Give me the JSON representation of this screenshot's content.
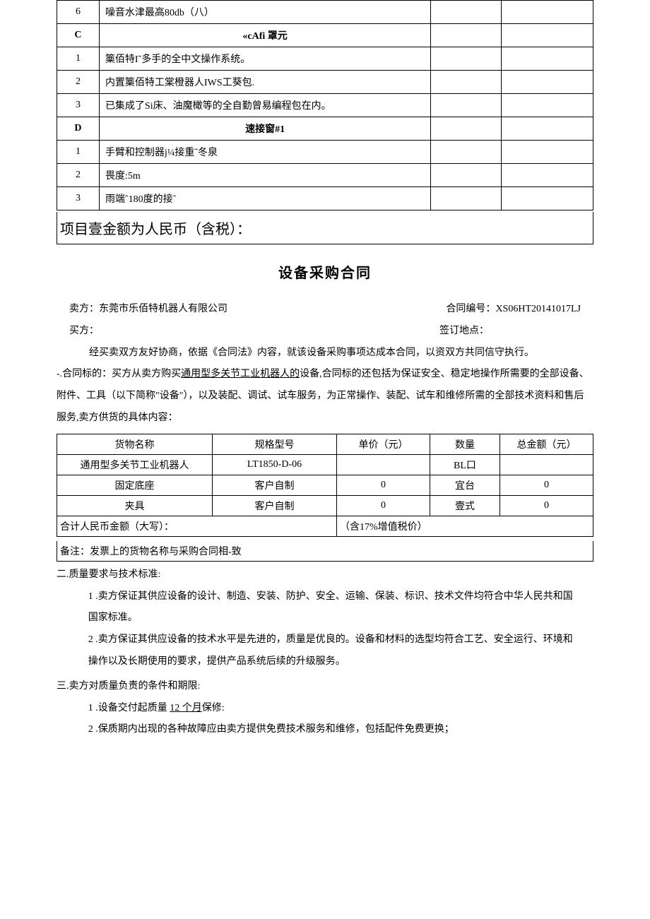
{
  "spec_table": {
    "rows": [
      {
        "idx": "6",
        "desc": "噪音水津最高80db（八）",
        "c3": "",
        "c4": "",
        "section": false
      },
      {
        "idx": "C",
        "desc": "«cAfi 罩元",
        "c3": "",
        "c4": "",
        "section": true
      },
      {
        "idx": "1",
        "desc": "篥佰特I˜多手的全中文操作系统。",
        "c3": "",
        "c4": "",
        "section": false
      },
      {
        "idx": "2",
        "desc": "内置篥佰特工棠橙器人IWS工葵包.",
        "c3": "",
        "c4": "",
        "section": false
      },
      {
        "idx": "3",
        "desc": "已集成了Si床、油魔橄等的全自勤曾易编程包在内。",
        "c3": "",
        "c4": "",
        "section": false
      },
      {
        "idx": "D",
        "desc": "速接窗#1",
        "c3": "",
        "c4": "",
        "section": true
      },
      {
        "idx": "1",
        "desc": "手臂和控制器j¼接重ˆ冬泉",
        "c3": "",
        "c4": "",
        "section": false
      },
      {
        "idx": "2",
        "desc": "畏度:5m",
        "c3": "",
        "c4": "",
        "section": false
      },
      {
        "idx": "3",
        "desc": "雨端ˆ180度的接ˆ",
        "c3": "",
        "c4": "",
        "section": false
      }
    ]
  },
  "project_amount_label": "项目壹金额为人民币（含税）：",
  "contract_title": "设备采购合同",
  "seller_label": "卖方：东莞市乐佰特机器人有限公司",
  "contract_no_label": "合同编号：",
  "contract_no": "XS06HT20141017LJ",
  "buyer_label": "买方：",
  "sign_place_label": "签订地点：",
  "intro": "经买卖双方友好协商，依据《合同法》内容，就该设备采购事项达成本合同，以资双方共同信守执行。",
  "section1_prefix": "-.合同标的：买方从卖方购买",
  "section1_underline": "通用型多关节工业机器人的",
  "section1_suffix": "设备,合同标的还包括为保证安全、稳定地操作所需要的全部设备、附件、工具（以下简称\"设备\"），以及装配、调试、试车服务，为正常操作、装配、试车和维修所需的全部技术资料和售后服务,卖方供货的具体内容：",
  "goods_table": {
    "headers": {
      "name": "货物名称",
      "spec": "规格型号",
      "price": "单价（元）",
      "qty": "数量",
      "total": "总金额（元）"
    },
    "rows": [
      {
        "name": "通用型多关节工业机器人",
        "spec": "LT1850-D-06",
        "price": "",
        "qty": "BL口",
        "total": ""
      },
      {
        "name": "固定底座",
        "spec": "客户自制",
        "price": "0",
        "qty": "宜台",
        "total": "0"
      },
      {
        "name": "夹具",
        "spec": "客户自制",
        "price": "0",
        "qty": "壹式",
        "total": "0"
      }
    ],
    "sum_label": "合计人民币金额（大写）：",
    "sum_note": "（含17%增值税价）"
  },
  "note_text": "备注：发票上的货物名称与采购合同相-致",
  "section2_title": "二.质量要求与技术标准:",
  "section2_items": [
    "1 .卖方保证其供应设备的设计、制造、安装、防护、安全、运输、保装、标识、技术文件均符合中华人民共和国国家标准。",
    "2 .卖方保证其供应设备的技术水平是先进的，质量是优良的。设备和材料的选型均符合工艺、安全运行、环境和操作以及长期使用的要求，提供产品系统后续的升级服务。"
  ],
  "section3_title": "三.卖方对质量负责的条件和期限:",
  "section3_item1_prefix": "1 .设备交付起质量 ",
  "section3_item1_underline": "12 个月",
  "section3_item1_suffix": "保修:",
  "section3_item2": "2 .保质期内出现的各种故障应由卖方提供免费技术服务和维修，包括配件免费更换；"
}
